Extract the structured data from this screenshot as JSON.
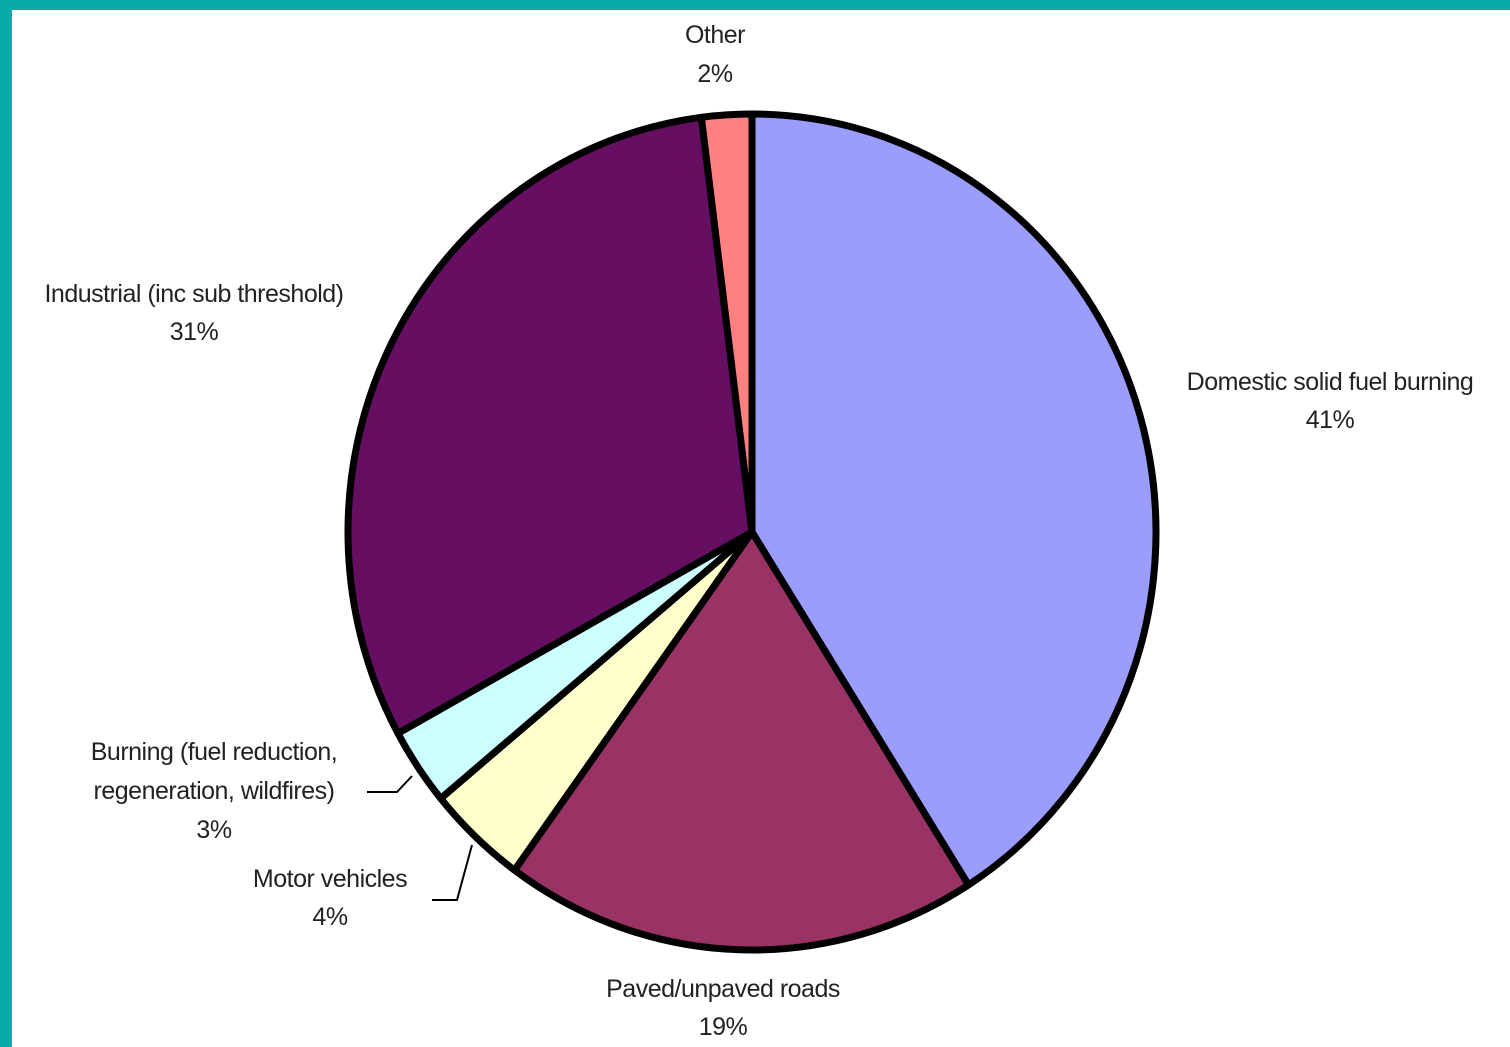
{
  "chart_data": {
    "type": "pie",
    "title": "",
    "slices": [
      {
        "name": "Domestic solid fuel burning",
        "value": 41,
        "pct_label": "41%",
        "color": "#9b9dfd"
      },
      {
        "name": "Paved/unpaved roads",
        "value": 19,
        "pct_label": "19%",
        "color": "#993366"
      },
      {
        "name": "Motor vehicles",
        "value": 4,
        "pct_label": "4%",
        "color": "#ffffcc"
      },
      {
        "name": "Burning (fuel reduction, regeneration, wildfires)",
        "value": 3,
        "pct_label": "3%",
        "color": "#ccffff"
      },
      {
        "name": "Industrial (inc sub threshold)",
        "value": 31,
        "pct_label": "31%",
        "color": "#660f62"
      },
      {
        "name": "Other",
        "value": 2,
        "pct_label": "2%",
        "color": "#ff8080"
      }
    ],
    "labels": {
      "domestic": {
        "line1": "Domestic solid fuel burning",
        "line2": "41%"
      },
      "roads": {
        "line1": "Paved/unpaved roads",
        "line2": "19%"
      },
      "motor": {
        "line1": "Motor vehicles",
        "line2": "4%"
      },
      "burning": {
        "line1": "Burning (fuel reduction,",
        "line2": "regeneration, wildfires)",
        "line3": "3%"
      },
      "industrial": {
        "line1": "Industrial (inc sub threshold)",
        "line2": "31%"
      },
      "other": {
        "line1": "Other",
        "line2": "2%"
      }
    }
  }
}
